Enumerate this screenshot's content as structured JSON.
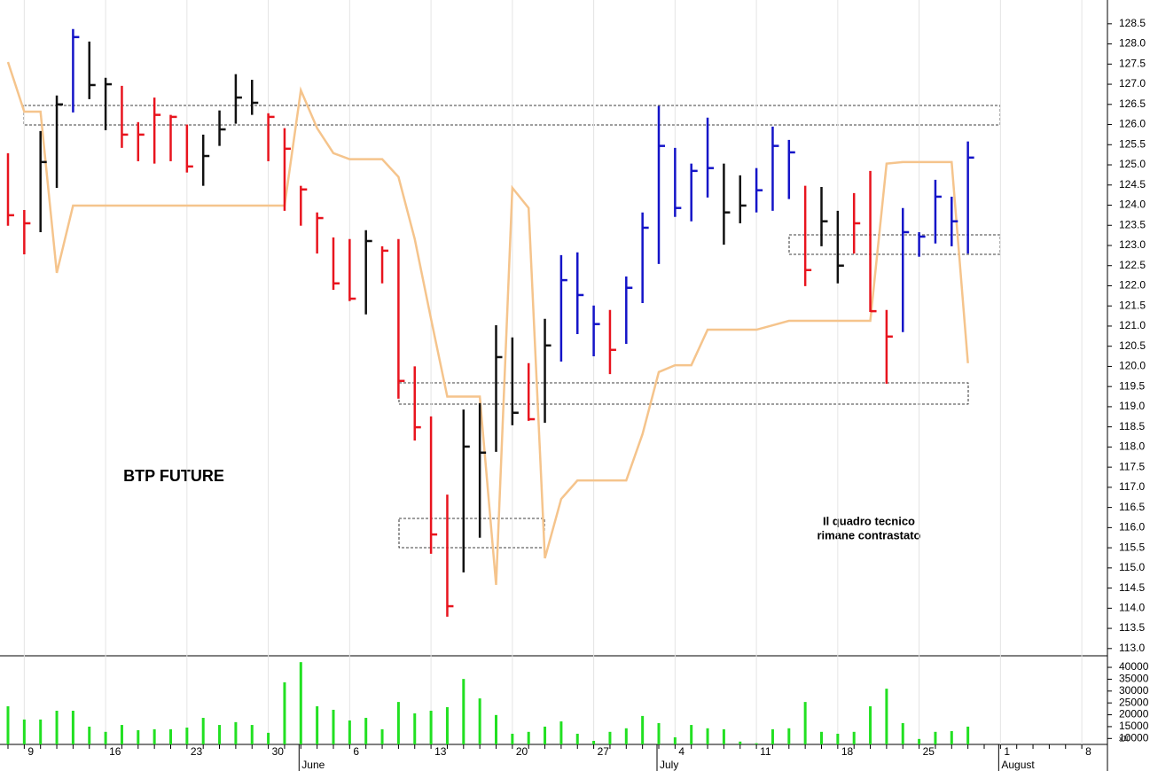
{
  "chart_data": {
    "type": "ohlc",
    "title": "BTP FUTURE",
    "annotation": [
      "Il quadro tecnico",
      "rimane contrastato"
    ],
    "categories": [
      null,
      "9",
      null,
      null,
      null,
      null,
      "16",
      null,
      null,
      null,
      null,
      "23",
      null,
      null,
      null,
      null,
      "30",
      null,
      null,
      null,
      null,
      "6",
      null,
      null,
      null,
      null,
      "13",
      null,
      null,
      null,
      null,
      "20",
      null,
      null,
      null,
      null,
      "27",
      null,
      null,
      null,
      null,
      "4",
      null,
      null,
      null,
      null,
      "11",
      null,
      null,
      null,
      null,
      "18",
      null,
      null,
      null,
      null,
      "25",
      null,
      null,
      null,
      null,
      "1",
      null,
      null,
      null,
      null,
      "8"
    ],
    "months": [
      {
        "index": 18,
        "label": "June"
      },
      {
        "index": 40,
        "label": "July"
      },
      {
        "index": 61,
        "label": "August"
      }
    ],
    "ylim": [
      112.82,
      129.09
    ],
    "yticks": [
      {
        "value": 113,
        "label": "113.0"
      },
      {
        "value": 113.5,
        "label": "113.5"
      },
      {
        "value": 114,
        "label": "114.0"
      },
      {
        "value": 114.5,
        "label": "114.5"
      },
      {
        "value": 115,
        "label": "115.0"
      },
      {
        "value": 115.5,
        "label": "115.5"
      },
      {
        "value": 116,
        "label": "116.0"
      },
      {
        "value": 116.5,
        "label": "116.5"
      },
      {
        "value": 117,
        "label": "117.0"
      },
      {
        "value": 117.5,
        "label": "117.5"
      },
      {
        "value": 118,
        "label": "118.0"
      },
      {
        "value": 118.5,
        "label": "118.5"
      },
      {
        "value": 119,
        "label": "119.0"
      },
      {
        "value": 119.5,
        "label": "119.5"
      },
      {
        "value": 120,
        "label": "120.0"
      },
      {
        "value": 120.5,
        "label": "120.5"
      },
      {
        "value": 121,
        "label": "121.0"
      },
      {
        "value": 121.5,
        "label": "121.5"
      },
      {
        "value": 122,
        "label": "122.0"
      },
      {
        "value": 122.5,
        "label": "122.5"
      },
      {
        "value": 123,
        "label": "123.0"
      },
      {
        "value": 123.5,
        "label": "123.5"
      },
      {
        "value": 124,
        "label": "124.0"
      },
      {
        "value": 124.5,
        "label": "124.5"
      },
      {
        "value": 125,
        "label": "125.0"
      },
      {
        "value": 125.5,
        "label": "125.5"
      },
      {
        "value": 126,
        "label": "126.0"
      },
      {
        "value": 126.5,
        "label": "126.5"
      },
      {
        "value": 127,
        "label": "127.0"
      },
      {
        "value": 127.5,
        "label": "127.5"
      },
      {
        "value": 128,
        "label": "128.0"
      },
      {
        "value": 128.5,
        "label": "128.5"
      }
    ],
    "y2lim": [
      7500,
      44500
    ],
    "y2ticks": [
      10000,
      15000,
      20000,
      25000,
      30000,
      35000,
      40000
    ],
    "y2_note": "x10",
    "grid": true,
    "bars": {
      "high": [
        125.29,
        123.88,
        125.84,
        126.72,
        128.37,
        128.06,
        127.16,
        126.96,
        126.06,
        126.67,
        126.24,
        126.0,
        125.75,
        126.35,
        127.25,
        127.11,
        126.28,
        125.91,
        124.48,
        123.82,
        123.2,
        123.16,
        123.38,
        122.98,
        123.16,
        120.0,
        118.76,
        116.82,
        118.93,
        119.09,
        121.02,
        120.72,
        120.08,
        121.18,
        122.76,
        122.83,
        121.51,
        121.4,
        122.23,
        123.82,
        126.46,
        125.42,
        125.03,
        126.17,
        125.03,
        124.74,
        124.92,
        125.95,
        125.62,
        124.48,
        124.45,
        123.86,
        124.3,
        124.85,
        121.4,
        123.93,
        123.33,
        124.63,
        124.21,
        125.58,
        null,
        null,
        null,
        null,
        null,
        null,
        null
      ],
      "low": [
        123.49,
        122.78,
        123.33,
        124.43,
        126.3,
        126.63,
        125.86,
        125.42,
        125.09,
        125.03,
        125.09,
        124.81,
        124.48,
        125.47,
        126.02,
        126.24,
        125.09,
        123.86,
        123.49,
        122.8,
        121.9,
        121.62,
        121.29,
        122.06,
        119.2,
        118.16,
        115.35,
        113.79,
        114.89,
        115.75,
        117.88,
        118.54,
        118.65,
        118.6,
        120.12,
        120.8,
        120.25,
        119.81,
        120.56,
        121.57,
        122.54,
        123.71,
        123.6,
        124.19,
        123.02,
        123.55,
        123.82,
        123.86,
        124.15,
        121.99,
        122.98,
        122.06,
        122.8,
        121.35,
        119.57,
        120.85,
        122.72,
        123.05,
        122.98,
        122.8,
        null,
        null,
        null,
        null,
        null,
        null,
        null
      ],
      "close": [
        123.75,
        123.55,
        125.07,
        126.5,
        128.17,
        126.98,
        127.0,
        125.75,
        125.75,
        126.24,
        126.19,
        124.96,
        125.22,
        125.88,
        126.67,
        126.54,
        126.19,
        125.4,
        124.39,
        123.68,
        122.06,
        121.68,
        123.11,
        122.87,
        119.64,
        118.49,
        115.83,
        114.05,
        118.01,
        117.86,
        120.23,
        118.85,
        118.69,
        120.52,
        122.14,
        121.77,
        121.05,
        120.41,
        121.95,
        123.44,
        125.47,
        123.93,
        124.85,
        124.92,
        123.82,
        123.99,
        124.37,
        125.47,
        125.31,
        122.39,
        123.6,
        122.5,
        123.55,
        121.37,
        120.74,
        123.33,
        123.22,
        124.21,
        123.6,
        125.18,
        null,
        null,
        null,
        null,
        null,
        null,
        null
      ],
      "colors": [
        "#e8141e",
        "#e8141e",
        "#111111",
        "#111111",
        "#1414c8",
        "#111111",
        "#111111",
        "#e8141e",
        "#e8141e",
        "#e8141e",
        "#e8141e",
        "#e8141e",
        "#111111",
        "#111111",
        "#111111",
        "#111111",
        "#e8141e",
        "#e8141e",
        "#e8141e",
        "#e8141e",
        "#e8141e",
        "#e8141e",
        "#111111",
        "#e8141e",
        "#e8141e",
        "#e8141e",
        "#e8141e",
        "#e8141e",
        "#111111",
        "#111111",
        "#111111",
        "#111111",
        "#e8141e",
        "#111111",
        "#1414c8",
        "#1414c8",
        "#1414c8",
        "#e8141e",
        "#1414c8",
        "#1414c8",
        "#1414c8",
        "#1414c8",
        "#1414c8",
        "#1414c8",
        "#111111",
        "#111111",
        "#1414c8",
        "#1414c8",
        "#1414c8",
        "#e8141e",
        "#111111",
        "#111111",
        "#e8141e",
        "#e8141e",
        "#e8141e",
        "#1414c8",
        "#1414c8",
        "#1414c8",
        "#1414c8",
        "#1414c8",
        null,
        null,
        null,
        null,
        null,
        null,
        null
      ]
    },
    "line": {
      "color": "#f5c48c",
      "values": [
        127.55,
        126.32,
        126.32,
        122.32,
        123.99,
        123.99,
        123.99,
        123.99,
        123.99,
        123.99,
        123.99,
        123.99,
        123.99,
        123.99,
        123.99,
        123.99,
        123.99,
        123.99,
        126.85,
        125.91,
        125.29,
        125.14,
        125.14,
        125.14,
        124.7,
        123.16,
        121.18,
        119.25,
        119.25,
        119.25,
        114.58,
        124.43,
        123.93,
        115.24,
        116.71,
        117.17,
        117.17,
        117.17,
        117.17,
        118.32,
        119.86,
        120.03,
        120.03,
        120.91,
        120.91,
        120.91,
        120.91,
        121.02,
        121.13,
        121.13,
        121.13,
        121.13,
        121.13,
        121.13,
        125.03,
        125.07,
        125.07,
        125.07,
        125.07,
        120.08,
        null,
        null,
        null,
        null,
        null,
        null,
        null
      ]
    },
    "volume": {
      "color": "#22e022",
      "axis": "y2",
      "values": [
        23600,
        18000,
        18000,
        21700,
        21700,
        15000,
        12800,
        15700,
        13500,
        13900,
        13900,
        14600,
        18700,
        15700,
        16900,
        15700,
        12400,
        33700,
        42200,
        23600,
        22100,
        17600,
        18700,
        13900,
        25400,
        20600,
        21700,
        23200,
        35100,
        26900,
        19900,
        12000,
        12800,
        15000,
        17200,
        12000,
        9000,
        12800,
        14300,
        19500,
        16500,
        10500,
        15700,
        14300,
        13900,
        8700,
        8000,
        13900,
        14300,
        25400,
        12800,
        12000,
        12800,
        23600,
        31000,
        16500,
        9800,
        12800,
        13100,
        15000,
        null,
        null,
        null,
        null,
        null,
        null,
        null
      ]
    }
  }
}
